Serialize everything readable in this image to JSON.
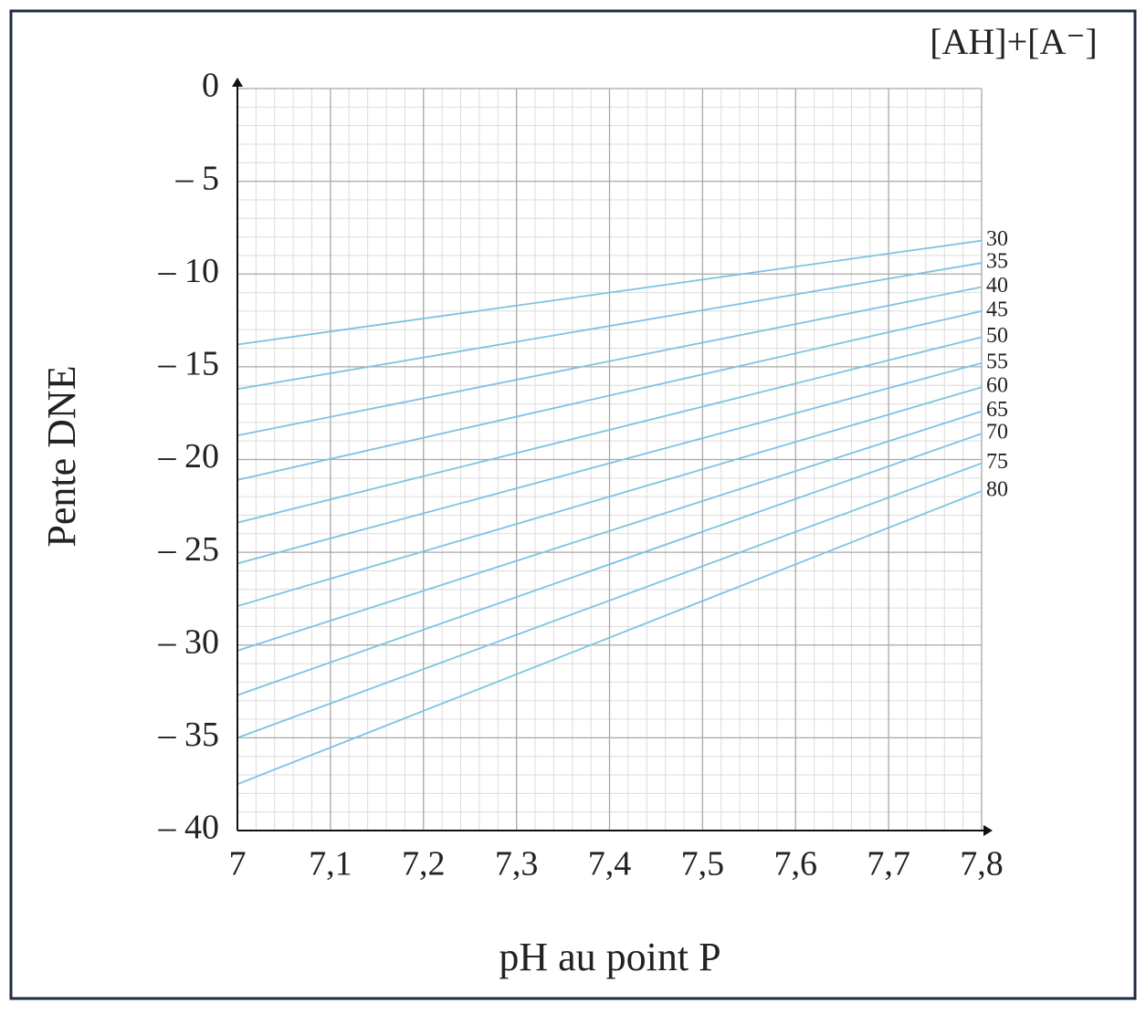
{
  "chart_data": {
    "type": "line",
    "legend_title": "[AH]+[A⁻]",
    "xlabel": "pH au point P",
    "ylabel": "Pente DNE",
    "x": [
      7,
      7.8
    ],
    "xlim": [
      7,
      7.8
    ],
    "ylim": [
      -40,
      0
    ],
    "xticks": [
      {
        "value": 7,
        "label": "7"
      },
      {
        "value": 7.1,
        "label": "7,1"
      },
      {
        "value": 7.2,
        "label": "7,2"
      },
      {
        "value": 7.3,
        "label": "7,3"
      },
      {
        "value": 7.4,
        "label": "7,4"
      },
      {
        "value": 7.5,
        "label": "7,5"
      },
      {
        "value": 7.6,
        "label": "7,6"
      },
      {
        "value": 7.7,
        "label": "7,7"
      },
      {
        "value": 7.8,
        "label": "7,8"
      }
    ],
    "yticks": [
      {
        "value": -40,
        "label": "– 40"
      },
      {
        "value": -35,
        "label": "– 35"
      },
      {
        "value": -30,
        "label": "– 30"
      },
      {
        "value": -25,
        "label": "– 25"
      },
      {
        "value": -20,
        "label": "– 20"
      },
      {
        "value": -15,
        "label": "– 15"
      },
      {
        "value": -10,
        "label": "– 10"
      },
      {
        "value": -5,
        "label": "– 5"
      },
      0
    ],
    "grid": true,
    "series": [
      {
        "name": "30",
        "color": "#7cc3e3",
        "values": [
          -13.8,
          -8.2
        ]
      },
      {
        "name": "35",
        "color": "#7cc3e3",
        "values": [
          -16.2,
          -9.4
        ]
      },
      {
        "name": "40",
        "color": "#7cc3e3",
        "values": [
          -18.7,
          -10.7
        ]
      },
      {
        "name": "45",
        "color": "#7cc3e3",
        "values": [
          -21.1,
          -12.0
        ]
      },
      {
        "name": "50",
        "color": "#7cc3e3",
        "values": [
          -23.4,
          -13.4
        ]
      },
      {
        "name": "55",
        "color": "#7cc3e3",
        "values": [
          -25.6,
          -14.8
        ]
      },
      {
        "name": "60",
        "color": "#7cc3e3",
        "values": [
          -27.9,
          -16.1
        ]
      },
      {
        "name": "65",
        "color": "#7cc3e3",
        "values": [
          -30.3,
          -17.4
        ]
      },
      {
        "name": "70",
        "color": "#7cc3e3",
        "values": [
          -32.7,
          -18.6
        ]
      },
      {
        "name": "75",
        "color": "#7cc3e3",
        "values": [
          -35.0,
          -20.2
        ]
      },
      {
        "name": "80",
        "color": "#7cc3e3",
        "values": [
          -37.5,
          -21.7
        ]
      }
    ]
  }
}
